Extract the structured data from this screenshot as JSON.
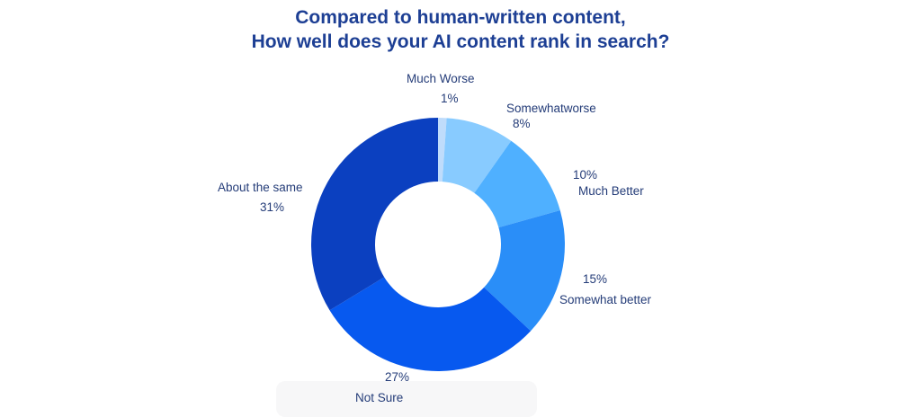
{
  "chart_data": {
    "type": "pie",
    "variant": "donut",
    "title": "Compared to human-written content,\nHow well does your AI content rank in search?",
    "title_lines": [
      "Compared to human-written content,",
      "How well does your AI content rank in search?"
    ],
    "slices": [
      {
        "label": "Much Worse",
        "value": 1,
        "value_label": "1%",
        "color": "#bfdcfb"
      },
      {
        "label": "Somewhatworse",
        "value": 8,
        "value_label": "8%",
        "color": "#88cbff"
      },
      {
        "label": "Much Better",
        "value": 10,
        "value_label": "10%",
        "color": "#4fb0ff"
      },
      {
        "label": "Somewhat better",
        "value": 15,
        "value_label": "15%",
        "color": "#2a8ef8"
      },
      {
        "label": "Not Sure",
        "value": 27,
        "value_label": "27%",
        "color": "#0759ef"
      },
      {
        "label": "About the same",
        "value": 31,
        "value_label": "31%",
        "color": "#0b40c0"
      }
    ],
    "legend": "none"
  }
}
